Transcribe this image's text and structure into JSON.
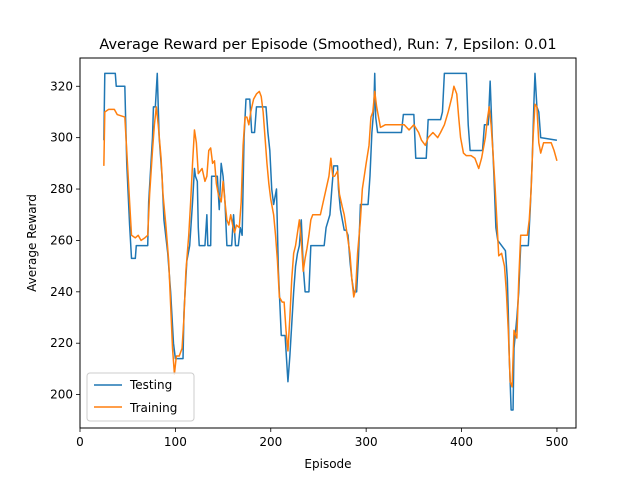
{
  "chart_data": {
    "type": "line",
    "title": "Average Reward per Episode (Smoothed), Run: 7, Epsilon: 0.01",
    "xlabel": "Episode",
    "ylabel": "Average Reward",
    "xlim": [
      0,
      520
    ],
    "ylim": [
      187,
      331
    ],
    "xticks": [
      0,
      100,
      200,
      300,
      400,
      500
    ],
    "yticks": [
      200,
      220,
      240,
      260,
      280,
      300,
      320
    ],
    "legend_position": "lower-left",
    "grid": false,
    "series": [
      {
        "name": "Testing",
        "color": "#1f77b4",
        "points": [
          [
            25,
            299
          ],
          [
            26,
            325
          ],
          [
            37,
            325
          ],
          [
            38,
            320
          ],
          [
            47,
            320
          ],
          [
            49,
            290
          ],
          [
            52,
            266
          ],
          [
            54,
            253
          ],
          [
            58,
            253
          ],
          [
            59,
            258
          ],
          [
            71,
            258
          ],
          [
            72,
            275
          ],
          [
            76,
            300
          ],
          [
            77,
            312
          ],
          [
            79,
            312
          ],
          [
            81,
            325
          ],
          [
            83,
            300
          ],
          [
            86,
            285
          ],
          [
            88,
            268
          ],
          [
            92,
            255
          ],
          [
            95,
            240
          ],
          [
            98,
            220
          ],
          [
            100,
            214
          ],
          [
            108,
            214
          ],
          [
            109,
            232
          ],
          [
            112,
            252
          ],
          [
            115,
            258
          ],
          [
            118,
            275
          ],
          [
            120,
            288
          ],
          [
            121,
            285
          ],
          [
            123,
            283
          ],
          [
            124,
            265
          ],
          [
            125,
            258
          ],
          [
            131,
            258
          ],
          [
            133,
            270
          ],
          [
            134,
            258
          ],
          [
            137,
            258
          ],
          [
            138,
            285
          ],
          [
            144,
            285
          ],
          [
            146,
            272
          ],
          [
            148,
            290
          ],
          [
            150,
            285
          ],
          [
            152,
            275
          ],
          [
            154,
            258
          ],
          [
            159,
            258
          ],
          [
            161,
            270
          ],
          [
            163,
            258
          ],
          [
            166,
            258
          ],
          [
            168,
            265
          ],
          [
            170,
            262
          ],
          [
            172,
            300
          ],
          [
            174,
            315
          ],
          [
            178,
            315
          ],
          [
            180,
            302
          ],
          [
            183,
            302
          ],
          [
            185,
            312
          ],
          [
            195,
            312
          ],
          [
            197,
            302
          ],
          [
            199,
            295
          ],
          [
            201,
            280
          ],
          [
            203,
            274
          ],
          [
            206,
            280
          ],
          [
            208,
            248
          ],
          [
            211,
            223
          ],
          [
            215,
            223
          ],
          [
            218,
            205
          ],
          [
            220,
            215
          ],
          [
            224,
            240
          ],
          [
            226,
            250
          ],
          [
            228,
            255
          ],
          [
            230,
            258
          ],
          [
            232,
            268
          ],
          [
            234,
            250
          ],
          [
            236,
            240
          ],
          [
            240,
            240
          ],
          [
            242,
            258
          ],
          [
            256,
            258
          ],
          [
            258,
            265
          ],
          [
            262,
            270
          ],
          [
            264,
            280
          ],
          [
            266,
            289
          ],
          [
            270,
            289
          ],
          [
            271,
            280
          ],
          [
            273,
            272
          ],
          [
            275,
            268
          ],
          [
            277,
            264
          ],
          [
            279,
            264
          ],
          [
            281,
            262
          ],
          [
            283,
            252
          ],
          [
            285,
            245
          ],
          [
            287,
            240
          ],
          [
            290,
            240
          ],
          [
            292,
            254
          ],
          [
            294,
            274
          ],
          [
            302,
            274
          ],
          [
            304,
            285
          ],
          [
            306,
            302
          ],
          [
            308,
            311
          ],
          [
            309,
            325
          ],
          [
            310,
            308
          ],
          [
            312,
            302
          ],
          [
            337,
            302
          ],
          [
            339,
            309
          ],
          [
            350,
            309
          ],
          [
            352,
            292
          ],
          [
            363,
            292
          ],
          [
            365,
            307
          ],
          [
            378,
            307
          ],
          [
            380,
            310
          ],
          [
            382,
            325
          ],
          [
            405,
            325
          ],
          [
            407,
            305
          ],
          [
            409,
            295
          ],
          [
            422,
            295
          ],
          [
            424,
            305
          ],
          [
            428,
            305
          ],
          [
            430,
            322
          ],
          [
            432,
            302
          ],
          [
            434,
            285
          ],
          [
            436,
            265
          ],
          [
            438,
            260
          ],
          [
            442,
            258
          ],
          [
            446,
            256
          ],
          [
            448,
            245
          ],
          [
            449,
            232
          ],
          [
            450,
            215
          ],
          [
            452,
            194
          ],
          [
            454,
            194
          ],
          [
            455,
            218
          ],
          [
            458,
            230
          ],
          [
            460,
            240
          ],
          [
            462,
            258
          ],
          [
            470,
            258
          ],
          [
            472,
            272
          ],
          [
            474,
            290
          ],
          [
            476,
            315
          ],
          [
            477,
            325
          ],
          [
            479,
            312
          ],
          [
            481,
            310
          ],
          [
            483,
            300
          ],
          [
            500,
            299
          ]
        ]
      },
      {
        "name": "Training",
        "color": "#ff7f0e",
        "points": [
          [
            25,
            289
          ],
          [
            26,
            310
          ],
          [
            30,
            311
          ],
          [
            36,
            311
          ],
          [
            39,
            309
          ],
          [
            47,
            308
          ],
          [
            49,
            295
          ],
          [
            52,
            275
          ],
          [
            54,
            262
          ],
          [
            58,
            261
          ],
          [
            61,
            262
          ],
          [
            64,
            260
          ],
          [
            68,
            261
          ],
          [
            71,
            262
          ],
          [
            73,
            278
          ],
          [
            76,
            295
          ],
          [
            78,
            305
          ],
          [
            80,
            312
          ],
          [
            82,
            305
          ],
          [
            85,
            292
          ],
          [
            87,
            278
          ],
          [
            90,
            266
          ],
          [
            93,
            252
          ],
          [
            95,
            235
          ],
          [
            97,
            218
          ],
          [
            99,
            208
          ],
          [
            101,
            215
          ],
          [
            104,
            215
          ],
          [
            107,
            218
          ],
          [
            109,
            230
          ],
          [
            111,
            248
          ],
          [
            114,
            262
          ],
          [
            116,
            275
          ],
          [
            118,
            290
          ],
          [
            120,
            303
          ],
          [
            122,
            298
          ],
          [
            124,
            286
          ],
          [
            128,
            288
          ],
          [
            131,
            283
          ],
          [
            133,
            285
          ],
          [
            135,
            295
          ],
          [
            137,
            296
          ],
          [
            139,
            290
          ],
          [
            141,
            291
          ],
          [
            143,
            282
          ],
          [
            145,
            278
          ],
          [
            148,
            275
          ],
          [
            150,
            283
          ],
          [
            152,
            275
          ],
          [
            154,
            268
          ],
          [
            156,
            266
          ],
          [
            158,
            270
          ],
          [
            160,
            266
          ],
          [
            162,
            263
          ],
          [
            164,
            266
          ],
          [
            167,
            265
          ],
          [
            169,
            275
          ],
          [
            171,
            297
          ],
          [
            173,
            308
          ],
          [
            175,
            308
          ],
          [
            177,
            305
          ],
          [
            179,
            310
          ],
          [
            182,
            315
          ],
          [
            185,
            317
          ],
          [
            188,
            318
          ],
          [
            190,
            316
          ],
          [
            192,
            310
          ],
          [
            194,
            300
          ],
          [
            196,
            290
          ],
          [
            198,
            282
          ],
          [
            200,
            276
          ],
          [
            203,
            270
          ],
          [
            205,
            262
          ],
          [
            207,
            252
          ],
          [
            209,
            238
          ],
          [
            212,
            236
          ],
          [
            214,
            236
          ],
          [
            216,
            225
          ],
          [
            218,
            217
          ],
          [
            220,
            230
          ],
          [
            222,
            245
          ],
          [
            224,
            255
          ],
          [
            226,
            258
          ],
          [
            228,
            263
          ],
          [
            230,
            268
          ],
          [
            232,
            260
          ],
          [
            234,
            248
          ],
          [
            236,
            253
          ],
          [
            238,
            257
          ],
          [
            240,
            262
          ],
          [
            242,
            268
          ],
          [
            244,
            270
          ],
          [
            248,
            270
          ],
          [
            252,
            270
          ],
          [
            255,
            275
          ],
          [
            258,
            280
          ],
          [
            261,
            285
          ],
          [
            263,
            292
          ],
          [
            265,
            285
          ],
          [
            267,
            285
          ],
          [
            270,
            287
          ],
          [
            272,
            278
          ],
          [
            275,
            273
          ],
          [
            277,
            270
          ],
          [
            279,
            265
          ],
          [
            281,
            260
          ],
          [
            283,
            255
          ],
          [
            285,
            245
          ],
          [
            287,
            238
          ],
          [
            289,
            241
          ],
          [
            291,
            255
          ],
          [
            294,
            268
          ],
          [
            296,
            280
          ],
          [
            298,
            285
          ],
          [
            300,
            290
          ],
          [
            303,
            297
          ],
          [
            305,
            308
          ],
          [
            307,
            310
          ],
          [
            309,
            318
          ],
          [
            311,
            312
          ],
          [
            313,
            308
          ],
          [
            315,
            304
          ],
          [
            320,
            305
          ],
          [
            330,
            305
          ],
          [
            340,
            305
          ],
          [
            345,
            303
          ],
          [
            350,
            305
          ],
          [
            355,
            302
          ],
          [
            358,
            299
          ],
          [
            362,
            297
          ],
          [
            365,
            300
          ],
          [
            370,
            302
          ],
          [
            375,
            300
          ],
          [
            378,
            302
          ],
          [
            382,
            305
          ],
          [
            386,
            310
          ],
          [
            390,
            316
          ],
          [
            392,
            320
          ],
          [
            395,
            317
          ],
          [
            397,
            308
          ],
          [
            399,
            300
          ],
          [
            402,
            294
          ],
          [
            405,
            293
          ],
          [
            410,
            293
          ],
          [
            414,
            292
          ],
          [
            418,
            288
          ],
          [
            421,
            292
          ],
          [
            425,
            300
          ],
          [
            427,
            307
          ],
          [
            429,
            312
          ],
          [
            431,
            305
          ],
          [
            433,
            294
          ],
          [
            435,
            282
          ],
          [
            437,
            268
          ],
          [
            439,
            254
          ],
          [
            442,
            255
          ],
          [
            445,
            250
          ],
          [
            447,
            240
          ],
          [
            449,
            225
          ],
          [
            451,
            205
          ],
          [
            453,
            203
          ],
          [
            455,
            225
          ],
          [
            458,
            222
          ],
          [
            460,
            245
          ],
          [
            462,
            262
          ],
          [
            469,
            262
          ],
          [
            471,
            268
          ],
          [
            473,
            280
          ],
          [
            475,
            300
          ],
          [
            477,
            313
          ],
          [
            479,
            312
          ],
          [
            481,
            298
          ],
          [
            483,
            294
          ],
          [
            486,
            298
          ],
          [
            490,
            298
          ],
          [
            494,
            298
          ],
          [
            497,
            295
          ],
          [
            500,
            291
          ]
        ]
      }
    ]
  }
}
